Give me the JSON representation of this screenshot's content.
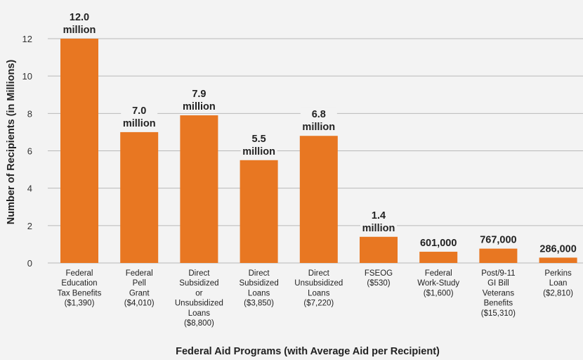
{
  "chart_data": {
    "type": "bar",
    "title": "",
    "xlabel": "Federal Aid Programs (with Average Aid per Recipient)",
    "ylabel": "Number of Recipients (in Millions)",
    "ylim": [
      0,
      12
    ],
    "yticks": [
      0,
      2,
      4,
      6,
      8,
      10,
      12
    ],
    "grid": true,
    "legend": "none",
    "categories": [
      "Federal Education Tax Benefits ($1,390)",
      "Federal Pell Grant ($4,010)",
      "Direct Subsidized or Unsubsidized Loans ($8,800)",
      "Direct Subsidized Loans ($3,850)",
      "Direct Unsubsidized Loans ($7,220)",
      "FSEOG ($530)",
      "Federal Work-Study ($1,600)",
      "Post/9-11 GI Bill Veterans Benefits ($15,310)",
      "Perkins Loan ($2,810)"
    ],
    "category_lines": [
      [
        "Federal",
        "Education",
        "Tax Benefits",
        "($1,390)"
      ],
      [
        "Federal",
        "Pell",
        "Grant",
        "($4,010)"
      ],
      [
        "Direct",
        "Subsidized",
        "or",
        "Unsubsidized",
        "Loans",
        "($8,800)"
      ],
      [
        "Direct",
        "Subsidized",
        "Loans",
        "($3,850)"
      ],
      [
        "Direct",
        "Unsubsidized",
        "Loans",
        "($7,220)"
      ],
      [
        "FSEOG",
        "($530)"
      ],
      [
        "Federal",
        "Work-Study",
        "($1,600)"
      ],
      [
        "Post/9-11",
        "GI Bill",
        "Veterans",
        "Benefits",
        "($15,310)"
      ],
      [
        "Perkins",
        "Loan",
        "($2,810)"
      ]
    ],
    "values": [
      12.0,
      7.0,
      7.9,
      5.5,
      6.8,
      1.4,
      0.601,
      0.767,
      0.286
    ],
    "data_labels": [
      [
        "12.0",
        "million"
      ],
      [
        "7.0",
        "million"
      ],
      [
        "7.9",
        "million"
      ],
      [
        "5.5",
        "million"
      ],
      [
        "6.8",
        "million"
      ],
      [
        "1.4",
        "million"
      ],
      [
        "601,000"
      ],
      [
        "767,000"
      ],
      [
        "286,000"
      ]
    ],
    "colors": {
      "bar": "#e87722",
      "grid": "#b8b8b8",
      "background": "#f3f3f3",
      "text": "#222222"
    }
  }
}
